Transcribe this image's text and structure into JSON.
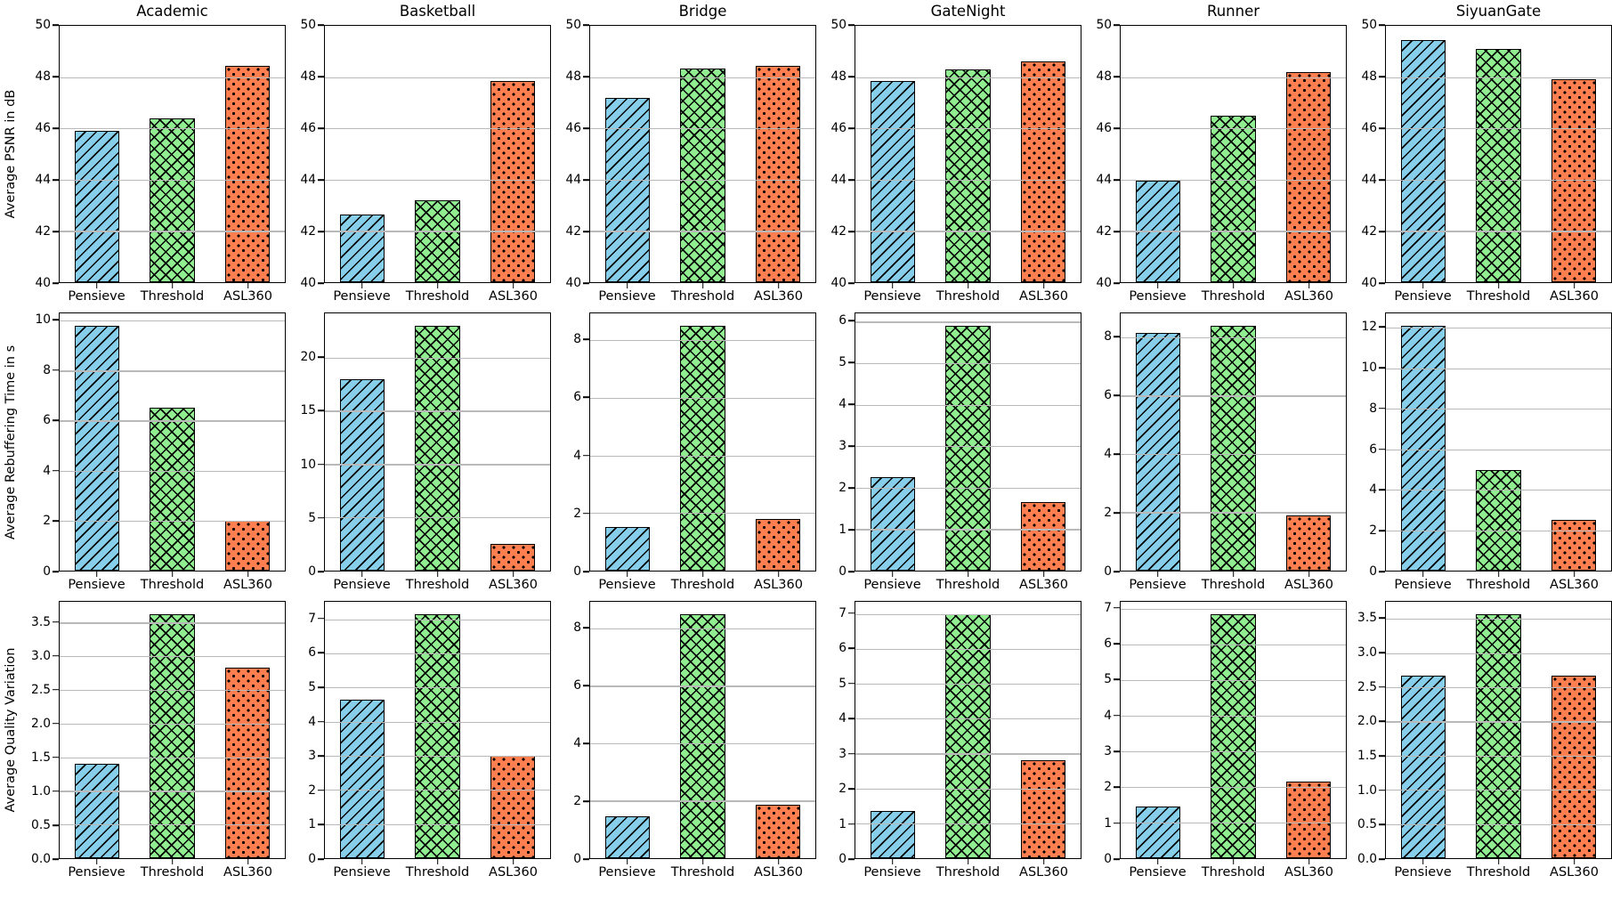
{
  "figure": {
    "background": "#ffffff",
    "grid_color": "#b9b9b9",
    "bar_edge_color": "#000000",
    "col_titles": [
      "Academic",
      "Basketball",
      "Bridge",
      "GateNight",
      "Runner",
      "SiyuanGate"
    ],
    "row_ylabels": [
      "Average PSNR in dB",
      "Average Rebuffering Time in s",
      "Average Quality Variation"
    ],
    "categories": [
      "Pensieve",
      "Threshold",
      "ASL360"
    ],
    "series_styles": [
      {
        "name": "Pensieve",
        "color": "#87CEEB",
        "hatch": "diagonal"
      },
      {
        "name": "Threshold",
        "color": "#90EE90",
        "hatch": "crosshatch"
      },
      {
        "name": "ASL360",
        "color": "#FF7F50",
        "hatch": "dots"
      }
    ],
    "legend": "none",
    "grid": "horizontal"
  },
  "chart_data": [
    {
      "type": "bar",
      "row": 0,
      "col": 0,
      "title": "Academic",
      "ylabel": "Average PSNR in dB",
      "categories": [
        "Pensieve",
        "Threshold",
        "ASL360"
      ],
      "values": [
        45.9,
        46.4,
        48.45
      ],
      "ylim": [
        40,
        50
      ],
      "yticks": [
        "40",
        "42",
        "44",
        "46",
        "48",
        "50"
      ]
    },
    {
      "type": "bar",
      "row": 0,
      "col": 1,
      "title": "Basketball",
      "ylabel": "",
      "categories": [
        "Pensieve",
        "Threshold",
        "ASL360"
      ],
      "values": [
        42.65,
        43.2,
        47.85
      ],
      "ylim": [
        40,
        50
      ],
      "yticks": [
        "40",
        "42",
        "44",
        "46",
        "48",
        "50"
      ]
    },
    {
      "type": "bar",
      "row": 0,
      "col": 2,
      "title": "Bridge",
      "ylabel": "",
      "categories": [
        "Pensieve",
        "Threshold",
        "ASL360"
      ],
      "values": [
        47.2,
        48.35,
        48.45
      ],
      "ylim": [
        40,
        50
      ],
      "yticks": [
        "40",
        "42",
        "44",
        "46",
        "48",
        "50"
      ]
    },
    {
      "type": "bar",
      "row": 0,
      "col": 3,
      "title": "GateNight",
      "ylabel": "",
      "categories": [
        "Pensieve",
        "Threshold",
        "ASL360"
      ],
      "values": [
        47.85,
        48.3,
        48.6
      ],
      "ylim": [
        40,
        50
      ],
      "yticks": [
        "40",
        "42",
        "44",
        "46",
        "48",
        "50"
      ]
    },
    {
      "type": "bar",
      "row": 0,
      "col": 4,
      "title": "Runner",
      "ylabel": "",
      "categories": [
        "Pensieve",
        "Threshold",
        "ASL360"
      ],
      "values": [
        43.95,
        46.5,
        48.2
      ],
      "ylim": [
        40,
        50
      ],
      "yticks": [
        "40",
        "42",
        "44",
        "46",
        "48",
        "50"
      ]
    },
    {
      "type": "bar",
      "row": 0,
      "col": 5,
      "title": "SiyuanGate",
      "ylabel": "",
      "categories": [
        "Pensieve",
        "Threshold",
        "ASL360"
      ],
      "values": [
        49.45,
        49.1,
        47.9
      ],
      "ylim": [
        40,
        50
      ],
      "yticks": [
        "40",
        "42",
        "44",
        "46",
        "48",
        "50"
      ]
    },
    {
      "type": "bar",
      "row": 1,
      "col": 0,
      "title": "",
      "ylabel": "Average Rebuffering Time in s",
      "categories": [
        "Pensieve",
        "Threshold",
        "ASL360"
      ],
      "values": [
        9.8,
        6.5,
        2.0
      ],
      "ylim": [
        0,
        10.29
      ],
      "yticks": [
        "0",
        "2",
        "4",
        "6",
        "8",
        "10"
      ]
    },
    {
      "type": "bar",
      "row": 1,
      "col": 1,
      "title": "",
      "ylabel": "",
      "categories": [
        "Pensieve",
        "Threshold",
        "ASL360"
      ],
      "values": [
        18.0,
        23.0,
        2.5
      ],
      "ylim": [
        0,
        24.15
      ],
      "yticks": [
        "0",
        "5",
        "10",
        "15",
        "20"
      ]
    },
    {
      "type": "bar",
      "row": 1,
      "col": 2,
      "title": "",
      "ylabel": "",
      "categories": [
        "Pensieve",
        "Threshold",
        "ASL360"
      ],
      "values": [
        1.5,
        8.5,
        1.8
      ],
      "ylim": [
        0,
        8.93
      ],
      "yticks": [
        "0",
        "2",
        "4",
        "6",
        "8"
      ]
    },
    {
      "type": "bar",
      "row": 1,
      "col": 3,
      "title": "",
      "ylabel": "",
      "categories": [
        "Pensieve",
        "Threshold",
        "ASL360"
      ],
      "values": [
        2.25,
        5.9,
        1.65
      ],
      "ylim": [
        0,
        6.2
      ],
      "yticks": [
        "0",
        "1",
        "2",
        "3",
        "4",
        "5",
        "6"
      ]
    },
    {
      "type": "bar",
      "row": 1,
      "col": 4,
      "title": "",
      "ylabel": "",
      "categories": [
        "Pensieve",
        "Threshold",
        "ASL360"
      ],
      "values": [
        8.15,
        8.4,
        1.9
      ],
      "ylim": [
        0,
        8.82
      ],
      "yticks": [
        "0",
        "2",
        "4",
        "6",
        "8"
      ]
    },
    {
      "type": "bar",
      "row": 1,
      "col": 5,
      "title": "",
      "ylabel": "",
      "categories": [
        "Pensieve",
        "Threshold",
        "ASL360"
      ],
      "values": [
        12.1,
        4.95,
        2.5
      ],
      "ylim": [
        0,
        12.71
      ],
      "yticks": [
        "0",
        "2",
        "4",
        "6",
        "8",
        "10",
        "12"
      ]
    },
    {
      "type": "bar",
      "row": 2,
      "col": 0,
      "title": "",
      "ylabel": "Average Quality Variation",
      "categories": [
        "Pensieve",
        "Threshold",
        "ASL360"
      ],
      "values": [
        1.4,
        3.63,
        2.83
      ],
      "ylim": [
        0,
        3.81
      ],
      "yticks": [
        "0.0",
        "0.5",
        "1.0",
        "1.5",
        "2.0",
        "2.5",
        "3.0",
        "3.5"
      ]
    },
    {
      "type": "bar",
      "row": 2,
      "col": 1,
      "title": "",
      "ylabel": "",
      "categories": [
        "Pensieve",
        "Threshold",
        "ASL360"
      ],
      "values": [
        4.65,
        7.15,
        3.0
      ],
      "ylim": [
        0,
        7.51
      ],
      "yticks": [
        "0",
        "1",
        "2",
        "3",
        "4",
        "5",
        "6",
        "7"
      ]
    },
    {
      "type": "bar",
      "row": 2,
      "col": 2,
      "title": "",
      "ylabel": "",
      "categories": [
        "Pensieve",
        "Threshold",
        "ASL360"
      ],
      "values": [
        1.45,
        8.5,
        1.85
      ],
      "ylim": [
        0,
        8.93
      ],
      "yticks": [
        "0",
        "2",
        "4",
        "6",
        "8"
      ]
    },
    {
      "type": "bar",
      "row": 2,
      "col": 3,
      "title": "",
      "ylabel": "",
      "categories": [
        "Pensieve",
        "Threshold",
        "ASL360"
      ],
      "values": [
        1.35,
        7.0,
        2.8
      ],
      "ylim": [
        0,
        7.35
      ],
      "yticks": [
        "0",
        "1",
        "2",
        "3",
        "4",
        "5",
        "6",
        "7"
      ]
    },
    {
      "type": "bar",
      "row": 2,
      "col": 4,
      "title": "",
      "ylabel": "",
      "categories": [
        "Pensieve",
        "Threshold",
        "ASL360"
      ],
      "values": [
        1.45,
        6.85,
        2.15
      ],
      "ylim": [
        0,
        7.19
      ],
      "yticks": [
        "0",
        "1",
        "2",
        "3",
        "4",
        "5",
        "6",
        "7"
      ]
    },
    {
      "type": "bar",
      "row": 2,
      "col": 5,
      "title": "",
      "ylabel": "",
      "categories": [
        "Pensieve",
        "Threshold",
        "ASL360"
      ],
      "values": [
        2.67,
        3.57,
        2.67
      ],
      "ylim": [
        0,
        3.75
      ],
      "yticks": [
        "0.0",
        "0.5",
        "1.0",
        "1.5",
        "2.0",
        "2.5",
        "3.0",
        "3.5"
      ]
    }
  ]
}
